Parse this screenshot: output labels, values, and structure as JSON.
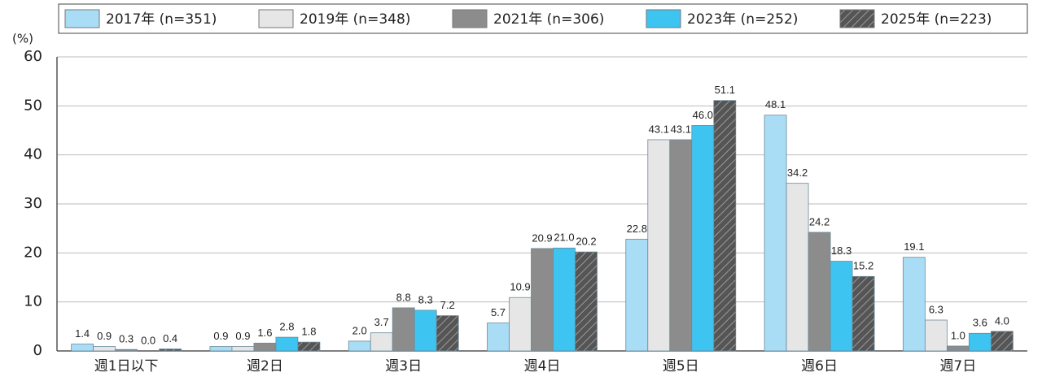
{
  "chart_data": {
    "type": "bar",
    "y_label": "(%)",
    "categories": [
      "週1日以下",
      "週2日",
      "週3日",
      "週4日",
      "週5日",
      "週6日",
      "週7日"
    ],
    "series": [
      {
        "name": "2017年 (n=351)",
        "color": "#a9ddf6",
        "values": [
          1.4,
          0.9,
          2.0,
          5.7,
          22.8,
          48.1,
          19.1
        ],
        "value_labels": [
          "1.4",
          "0.9",
          "2.0",
          "5.7",
          "22.8",
          "48.1",
          "19.1"
        ]
      },
      {
        "name": "2019年 (n=348)",
        "color": "#e6e6e6",
        "values": [
          0.9,
          0.9,
          3.7,
          10.9,
          43.1,
          34.2,
          6.3
        ],
        "value_labels": [
          "0.9",
          "0.9",
          "3.7",
          "10.9",
          "43.1",
          "34.2",
          "6.3"
        ]
      },
      {
        "name": "2021年 (n=306)",
        "color": "#8c8c8c",
        "values": [
          0.3,
          1.6,
          8.8,
          20.9,
          43.1,
          24.2,
          1.0
        ],
        "value_labels": [
          "0.3",
          "1.6",
          "8.8",
          "20.9",
          "43.1",
          "24.2",
          "1.0"
        ]
      },
      {
        "name": "2023年 (n=252)",
        "color": "#3ec4f0",
        "values": [
          0.0,
          2.8,
          8.3,
          21.0,
          46.0,
          18.3,
          3.6
        ],
        "value_labels": [
          "0.0",
          "2.8",
          "8.3",
          "21.0",
          "46.0",
          "18.3",
          "3.6"
        ]
      },
      {
        "name": "2025年 (n=223)",
        "color": "#555555",
        "hatch": true,
        "values": [
          0.4,
          1.8,
          7.2,
          20.2,
          51.1,
          15.2,
          4.0
        ],
        "value_labels": [
          "0.4",
          "1.8",
          "7.2",
          "20.2",
          "51.1",
          "15.2",
          "4.0"
        ]
      }
    ],
    "ylim": [
      0,
      60
    ],
    "yticks": [
      0,
      10,
      20,
      30,
      40,
      50,
      60
    ],
    "grid": true
  }
}
